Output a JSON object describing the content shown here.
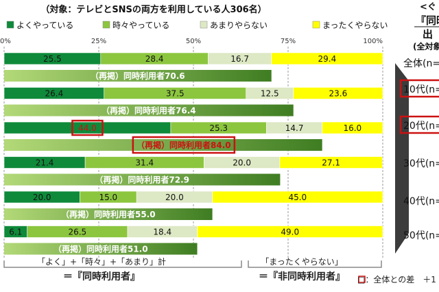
{
  "chart_data": {
    "type": "bar",
    "stacked": true,
    "orientation": "horizontal",
    "subtitle": "（対象：テレビとSNSの両方を利用している人306名）",
    "legend": [
      {
        "label": "よくやっている",
        "color": "#0f8a3a"
      },
      {
        "label": "時々やっている",
        "color": "#8cc63f"
      },
      {
        "label": "あまりやらない",
        "color": "#dde8c4"
      },
      {
        "label": "まったくやらない",
        "color": "#ffff00"
      }
    ],
    "x_ticks": [
      "0%",
      "25%",
      "50%",
      "75%",
      "100%"
    ],
    "xlim": [
      0,
      100
    ],
    "rows": [
      {
        "values": [
          25.5,
          28.4,
          16.7,
          29.4
        ],
        "sum_label": "（再掲）同時利用者70.6",
        "sum_value": 70.6
      },
      {
        "values": [
          26.4,
          37.5,
          12.5,
          23.6
        ],
        "sum_label": "（再掲）同時利用者76.4",
        "sum_value": 76.4
      },
      {
        "values": [
          44.0,
          25.3,
          14.7,
          16.0
        ],
        "sum_label": "（再掲）同時利用者84.0",
        "sum_value": 84.0,
        "highlight_first": true,
        "highlight_sum": true
      },
      {
        "values": [
          21.4,
          31.4,
          20.0,
          27.1
        ],
        "sum_label": "（再掲）同時利用者72.9",
        "sum_value": 72.9
      },
      {
        "values": [
          20.0,
          15.0,
          20.0,
          45.0
        ],
        "sum_label": "（再掲）同時利用者55.0",
        "sum_value": 55.0
      },
      {
        "values": [
          6.1,
          26.5,
          18.4,
          49.0
        ],
        "sum_label": "（再掲）同時利用者51.0",
        "sum_value": 51.0
      }
    ],
    "bottom_left": [
      "「よく」+「時々」+「あまり」計",
      "＝『同時利用者』"
    ],
    "bottom_right": [
      "「まったくやらない」",
      "＝『非同時利用者』"
    ],
    "note": "□：全体との差　＋1"
  },
  "right_panel": {
    "header_lines": [
      "<ぐ",
      "『同時",
      "出",
      "(全対象者"
    ],
    "labels": [
      "全体(n=",
      "10代(n=",
      "20代(n=",
      "30代(n=",
      "40代(n=",
      "50代(n="
    ],
    "highlighted": [
      1,
      2
    ]
  },
  "colors": {
    "highlight": "#cc1111",
    "sum_dark": "#3d7a1e",
    "sum_light": "#a9d36b"
  }
}
